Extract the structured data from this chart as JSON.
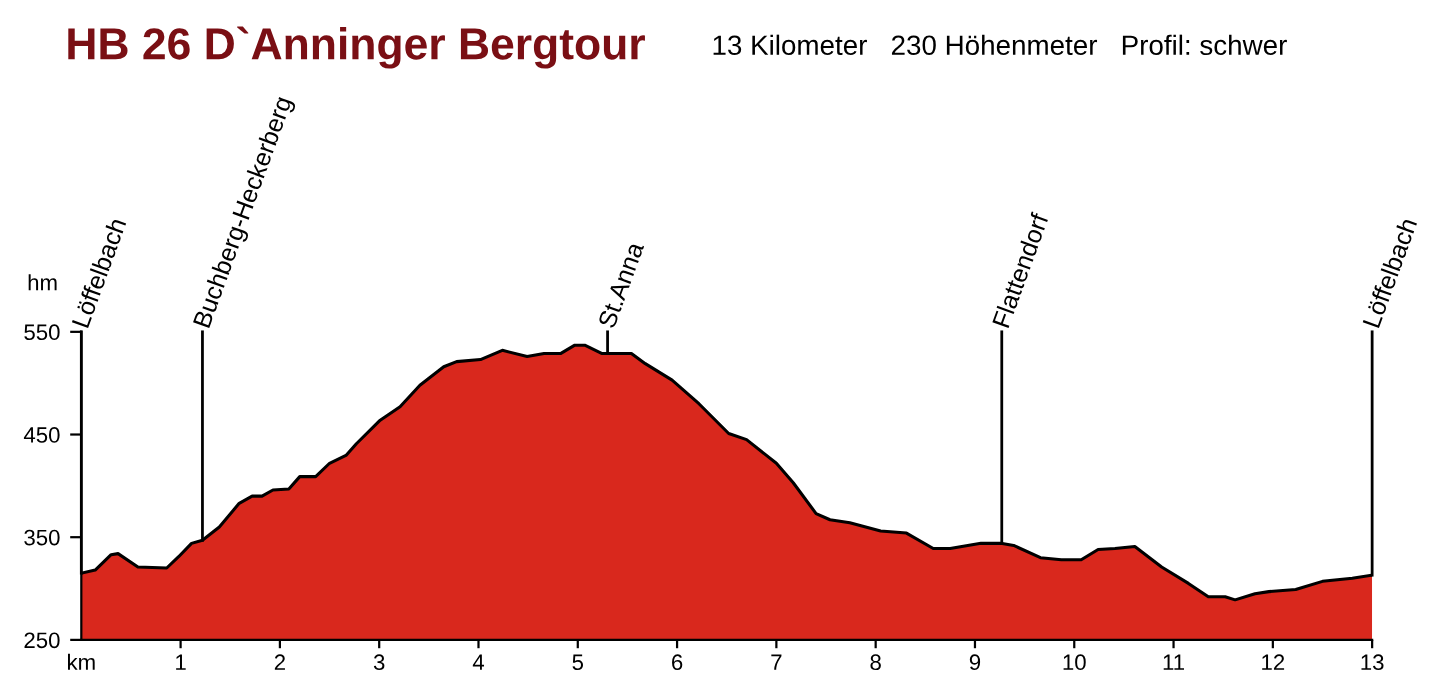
{
  "chart_data": {
    "type": "area",
    "title": "HB 26 D`Anninger Bergtour",
    "subtitle": "13 Kilometer   230 Höhenmeter   Profil: schwer",
    "xlabel": "km",
    "ylabel": "hm",
    "series": [
      {
        "color": "#d9281d",
        "x": [
          0,
          0.14,
          0.3,
          0.37,
          0.57,
          0.86,
          0.98,
          1.11,
          1.22,
          1.39,
          1.59,
          1.72,
          1.82,
          1.93,
          2.09,
          2.2,
          2.36,
          2.5,
          2.67,
          2.77,
          3.01,
          3.21,
          3.41,
          3.65,
          3.78,
          4.02,
          4.24,
          4.49,
          4.66,
          4.83,
          4.97,
          5.07,
          5.24,
          5.54,
          5.68,
          5.95,
          6.22,
          6.52,
          6.7,
          7.0,
          7.17,
          7.4,
          7.54,
          7.74,
          8.05,
          8.31,
          8.58,
          8.75,
          9.06,
          9.26,
          9.39,
          9.66,
          9.87,
          10.07,
          10.24,
          10.41,
          10.61,
          10.88,
          11.15,
          11.35,
          11.52,
          11.62,
          11.82,
          11.96,
          12.23,
          12.5,
          12.8,
          13.0
        ],
        "values": [
          315,
          318,
          333,
          334,
          321,
          320,
          331,
          344,
          347,
          360,
          383,
          390,
          390,
          396,
          397,
          409,
          409,
          422,
          430,
          441,
          464,
          477,
          498,
          516,
          521,
          523,
          532,
          526,
          529,
          529,
          537,
          537,
          529,
          529,
          519,
          503,
          480,
          451,
          445,
          422,
          403,
          373,
          367,
          364,
          356,
          354,
          339,
          339,
          344,
          344,
          342,
          330,
          328,
          328,
          338,
          339,
          341,
          321,
          305,
          292,
          292,
          289,
          295,
          297,
          299,
          307,
          310,
          313
        ]
      }
    ],
    "xlim": [
      0,
      13
    ],
    "xticks": [
      1,
      2,
      3,
      4,
      5,
      6,
      7,
      8,
      9,
      10,
      11,
      12,
      13
    ],
    "ylim": [
      250,
      550
    ],
    "yticks": [
      250,
      350,
      450,
      550
    ],
    "grid": false,
    "ref_lines": [
      {
        "axis": "x",
        "value": 0,
        "label": "Löffelbach",
        "color": "#000000"
      },
      {
        "axis": "x",
        "value": 1.22,
        "label": "Buchberg-Heckerberg",
        "color": "#000000"
      },
      {
        "axis": "x",
        "value": 5.3,
        "label": "St.Anna",
        "color": "#000000"
      },
      {
        "axis": "x",
        "value": 9.27,
        "label": "Flattendorf",
        "color": "#000000"
      },
      {
        "axis": "x",
        "value": 13,
        "label": "Löffelbach",
        "color": "#000000"
      }
    ]
  }
}
